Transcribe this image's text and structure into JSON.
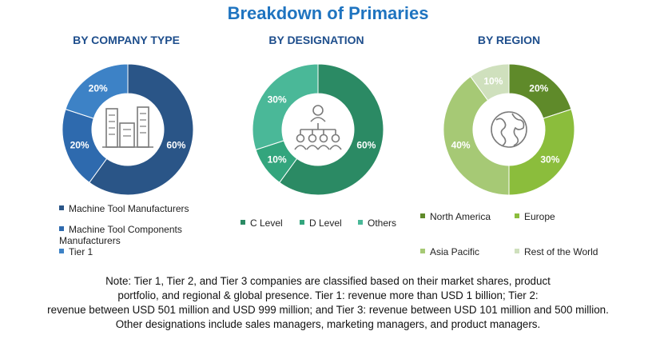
{
  "title": "Breakdown of Primaries",
  "note": {
    "lines": [
      "Note: Tier 1, Tier 2, and Tier 3 companies are classified based on their market shares, product",
      "portfolio, and regional & global presence. Tier 1: revenue more than USD 1 billion; Tier 2:",
      "revenue between USD 501 million and USD 999 million; and Tier 3: revenue between USD 101 million and 500 million.",
      "Other designations include sales managers, marketing managers, and product managers."
    ]
  },
  "chart_data": [
    {
      "type": "pie",
      "title": "BY COMPANY TYPE",
      "icon": "buildings-icon",
      "slices": [
        {
          "label": "Machine Tool Manufacturers",
          "value": 60,
          "display": "60%",
          "color": "#2a5587"
        },
        {
          "label": "Machine Tool Components Manufacturers",
          "value": 20,
          "display": "20%",
          "color": "#2e6aae"
        },
        {
          "label": "Tier 1",
          "value": 20,
          "display": "20%",
          "color": "#3d82c6"
        }
      ],
      "legend": [
        "Machine Tool Manufacturers",
        "Machine Tool Components Manufacturers",
        "Tier 1"
      ]
    },
    {
      "type": "pie",
      "title": "BY DESIGNATION",
      "icon": "org-chart-icon",
      "slices": [
        {
          "label": "C Level",
          "value": 60,
          "display": "60%",
          "color": "#2b8a64"
        },
        {
          "label": "D Level",
          "value": 10,
          "display": "10%",
          "color": "#33a57d"
        },
        {
          "label": "Others",
          "value": 30,
          "display": "30%",
          "color": "#4ab898"
        }
      ],
      "legend": [
        "C Level",
        "D Level",
        "Others"
      ]
    },
    {
      "type": "pie",
      "title": "BY REGION",
      "icon": "globe-icon",
      "slices": [
        {
          "label": "North America",
          "value": 20,
          "display": "20%",
          "color": "#5f8a2a"
        },
        {
          "label": "Europe",
          "value": 30,
          "display": "30%",
          "color": "#8bbd3c"
        },
        {
          "label": "Asia Pacific",
          "value": 40,
          "display": "40%",
          "color": "#a6c975"
        },
        {
          "label": "Rest of the World",
          "value": 10,
          "display": "10%",
          "color": "#cfe0bd"
        }
      ],
      "legend": [
        "North America",
        "Europe",
        "Asia Pacific",
        "Rest of the World"
      ]
    }
  ]
}
